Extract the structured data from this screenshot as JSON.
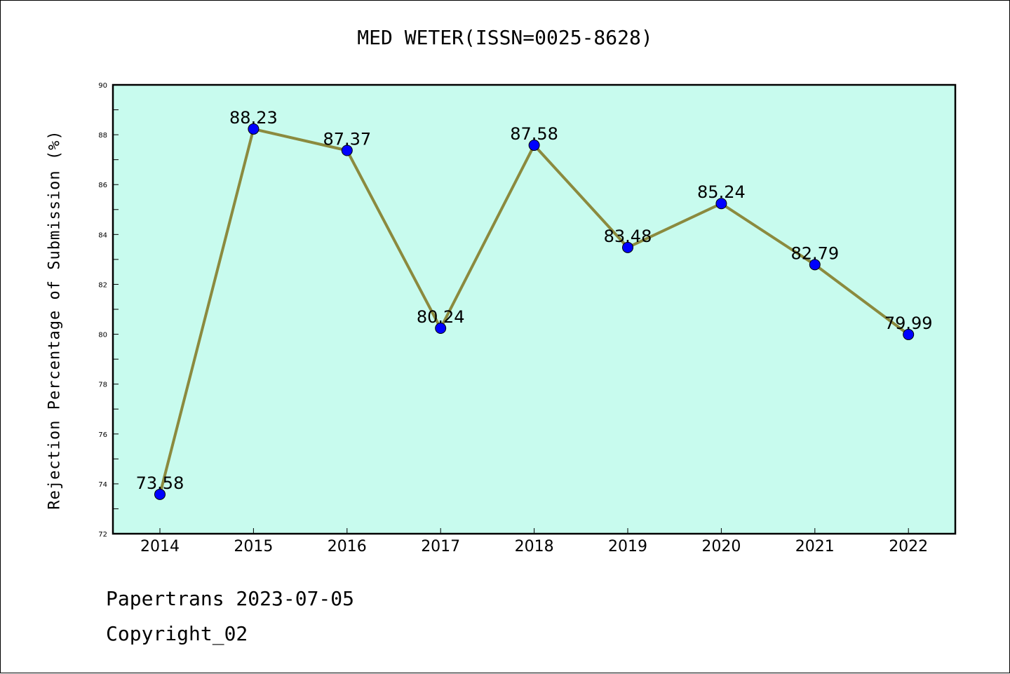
{
  "chart_data": {
    "type": "line",
    "title": "MED WETER(ISSN=0025-8628)",
    "xlabel": "",
    "ylabel": "Rejection Percentage of Submission (%)",
    "categories": [
      "2014",
      "2015",
      "2016",
      "2017",
      "2018",
      "2019",
      "2020",
      "2021",
      "2022"
    ],
    "series": [
      {
        "values": [
          73.58,
          88.23,
          87.37,
          80.24,
          87.58,
          83.48,
          85.24,
          82.79,
          79.99
        ],
        "labels": [
          "73.58",
          "88.23",
          "87.37",
          "80.24",
          "87.58",
          "83.48",
          "85.24",
          "82.79",
          "79.99"
        ]
      }
    ],
    "ylim": [
      72,
      90
    ],
    "yticks": [
      "72",
      "74",
      "76",
      "78",
      "80",
      "82",
      "84",
      "86",
      "88",
      "90"
    ],
    "grid": false,
    "legend": "none",
    "colors": {
      "plot_background": "#c8fbee",
      "line": "#8b8a3e",
      "marker": "#0000ff"
    }
  },
  "footer": {
    "line1": "Papertrans 2023-07-05",
    "line2": "Copyright_02"
  }
}
